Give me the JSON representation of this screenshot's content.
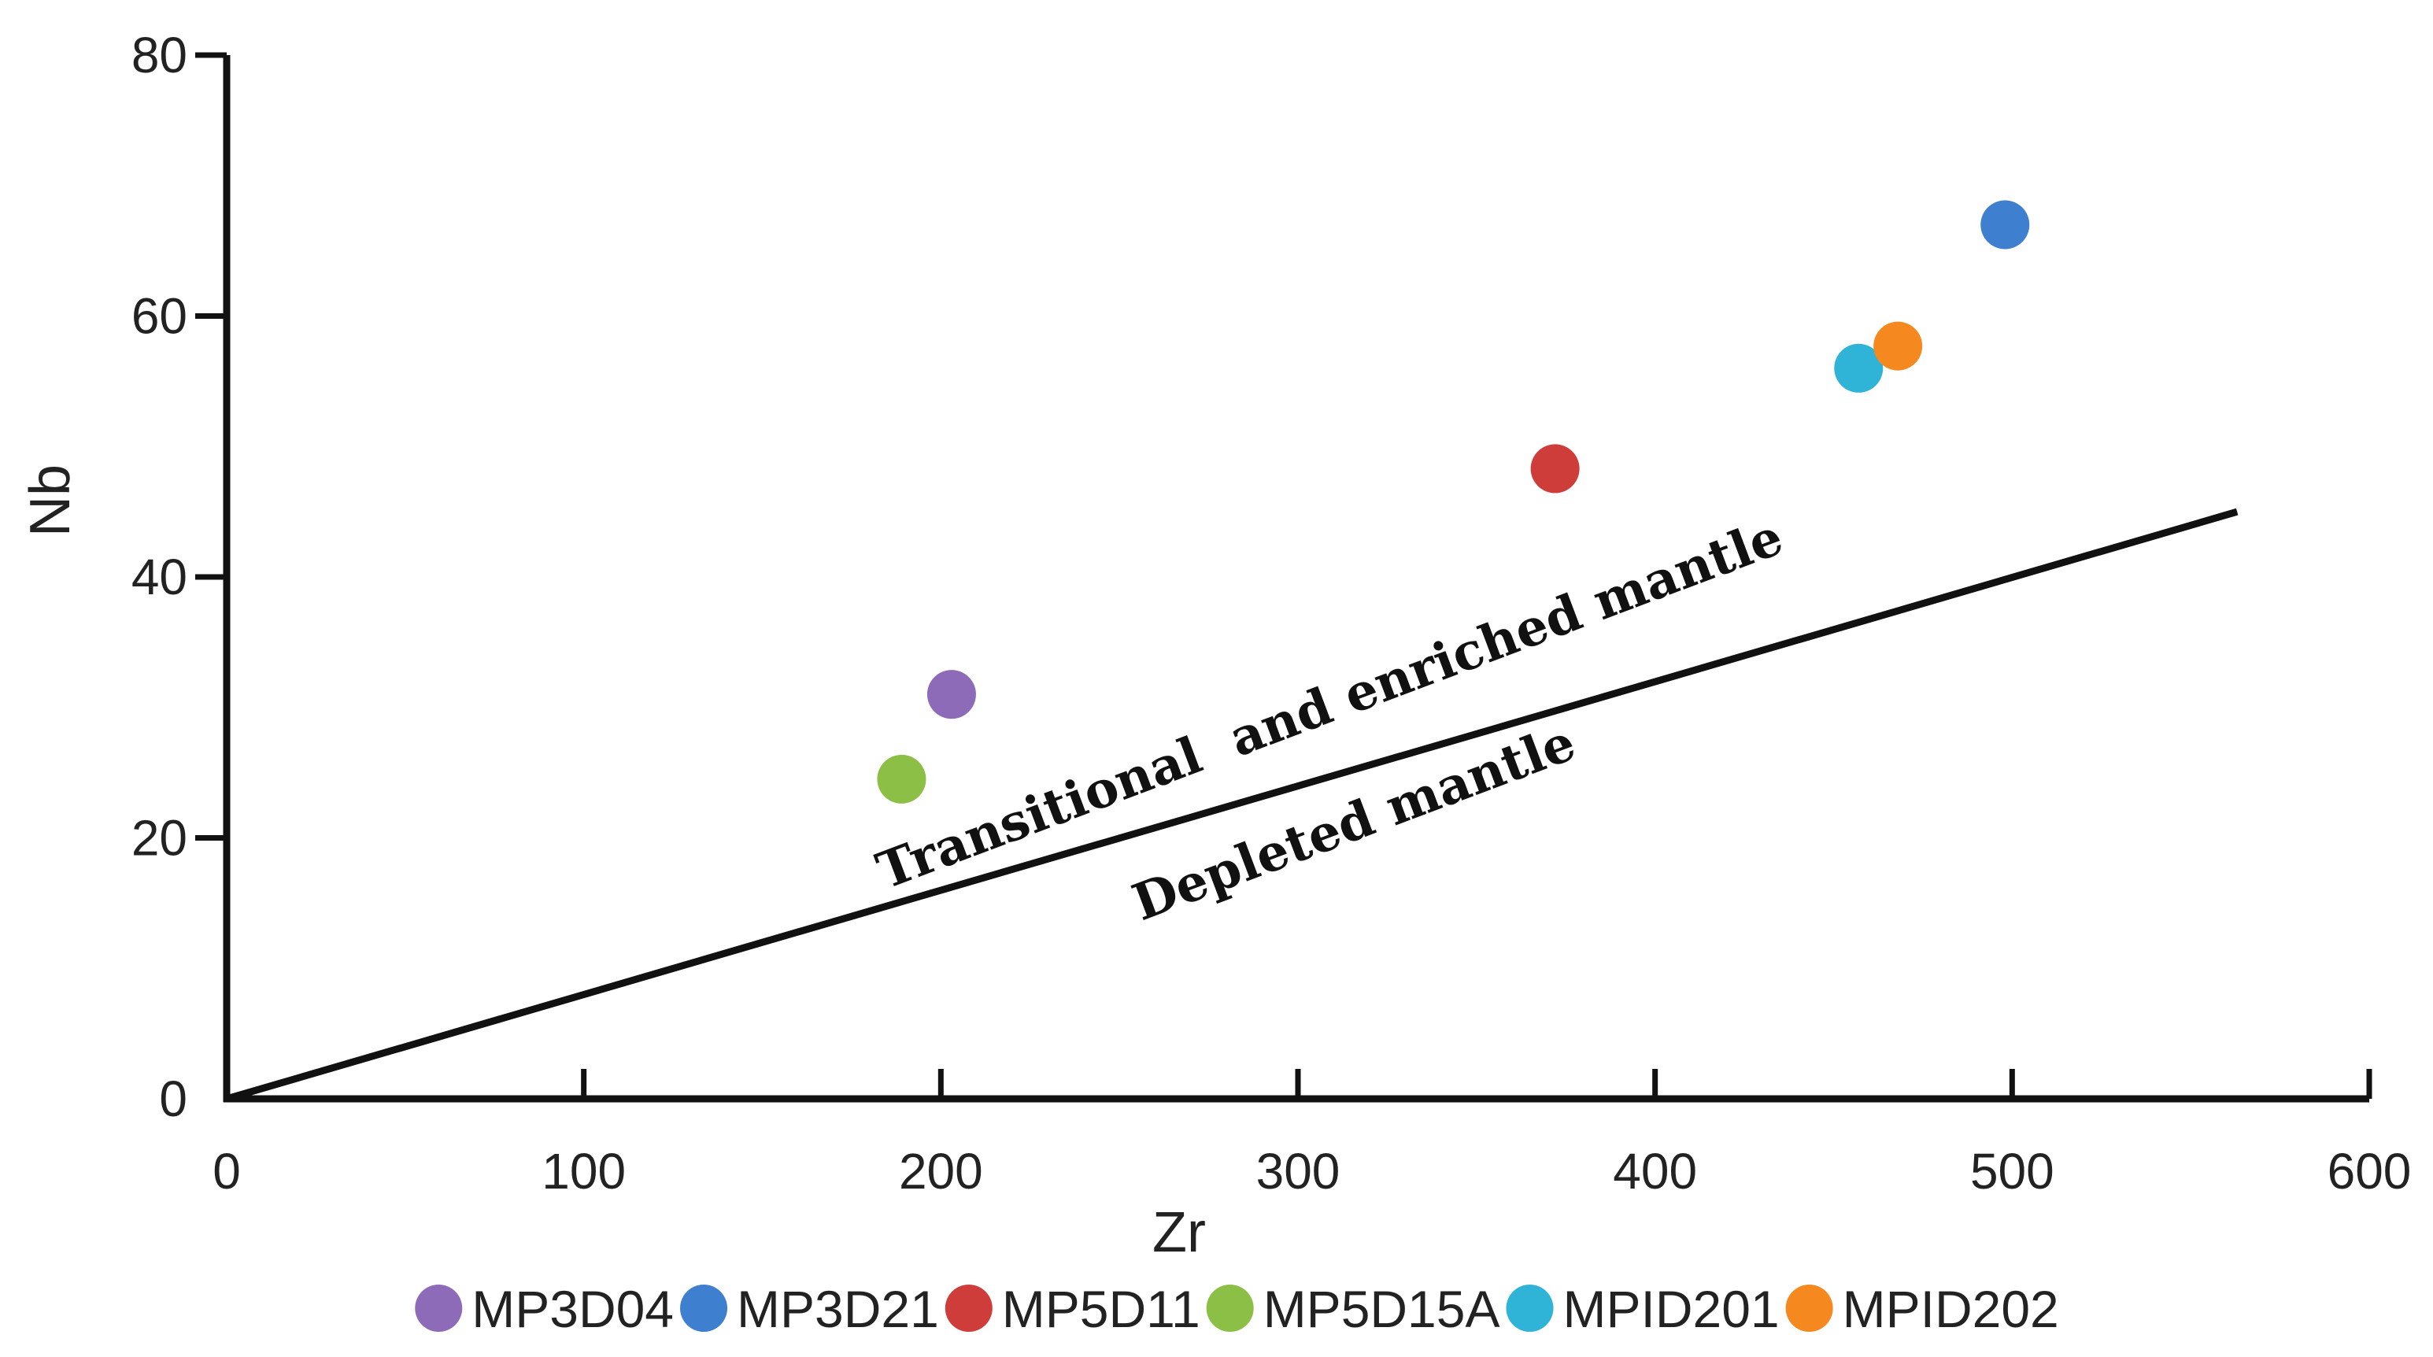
{
  "chart_data": {
    "type": "scatter",
    "title": "",
    "xlabel": "Zr",
    "ylabel": "Nb",
    "xlim": [
      0,
      600
    ],
    "ylim": [
      0,
      80
    ],
    "xticks": [
      0,
      100,
      200,
      300,
      400,
      500,
      600
    ],
    "yticks": [
      0,
      20,
      40,
      60,
      80
    ],
    "grid": false,
    "legend_position": "bottom",
    "series": [
      {
        "name": "MP3D04",
        "color": "#8e6bb8",
        "x": [
          203
        ],
        "y": [
          31
        ]
      },
      {
        "name": "MP3D21",
        "color": "#3f7fcf",
        "x": [
          498
        ],
        "y": [
          67
        ]
      },
      {
        "name": "MP5D11",
        "color": "#cf3d3a",
        "x": [
          372
        ],
        "y": [
          48.3
        ]
      },
      {
        "name": "MP5D15A",
        "color": "#8cbf45",
        "x": [
          189
        ],
        "y": [
          24.5
        ]
      },
      {
        "name": "MPID201",
        "color": "#2fb3d6",
        "x": [
          457
        ],
        "y": [
          56
        ]
      },
      {
        "name": "MPID202",
        "color": "#f5891f",
        "x": [
          468
        ],
        "y": [
          57.7
        ]
      }
    ],
    "reference_line": {
      "x": [
        0,
        563
      ],
      "y": [
        0,
        45
      ]
    },
    "annotations": [
      {
        "text": "Transitional  and enriched mantle"
      },
      {
        "text": "Depleted mantle"
      }
    ]
  }
}
